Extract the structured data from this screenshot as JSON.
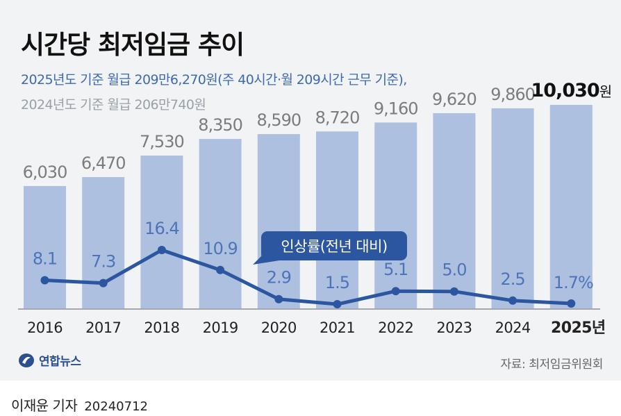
{
  "title": "시간당 최저임금 추이",
  "subtitle_current": "2025년도 기준 월급 209만6,270원(주 40시간·월 209시간 근무 기준),",
  "subtitle_previous": "2024년도 기준 월급 206만740원",
  "chart_data": {
    "type": "bar",
    "categories": [
      "2016",
      "2017",
      "2018",
      "2019",
      "2020",
      "2021",
      "2022",
      "2023",
      "2024",
      "2025년"
    ],
    "series": [
      {
        "name": "시간당 최저임금(원)",
        "type": "bar",
        "values": [
          6030,
          6470,
          7530,
          8350,
          8590,
          8720,
          9160,
          9620,
          9860,
          10030
        ],
        "labels": [
          "6,030",
          "6,470",
          "7,530",
          "8,350",
          "8,590",
          "8,720",
          "9,160",
          "9,620",
          "9,860",
          "10,030"
        ],
        "last_label_unit": "원"
      },
      {
        "name": "인상률(전년 대비)",
        "type": "line",
        "values": [
          8.1,
          7.3,
          16.4,
          10.9,
          2.9,
          1.5,
          5.1,
          5.0,
          2.5,
          1.7
        ],
        "labels": [
          "8.1",
          "7.3",
          "16.4",
          "10.9",
          "2.9",
          "1.5",
          "5.1",
          "5.0",
          "2.5",
          "1.7"
        ],
        "last_label_unit": "%"
      }
    ],
    "line_legend": "인상률(전년 대비)",
    "title": "시간당 최저임금 추이",
    "xlabel": "",
    "ylabel": ""
  },
  "logo_text": "연합뉴스",
  "source": "자료: 최저임금위원회",
  "byline": {
    "author": "이재윤 기자",
    "date": "20240712"
  },
  "colors": {
    "bar": "#aec0df",
    "line": "#2c56a0",
    "label": "#4d74b8",
    "bar_label": "#7c7c7c",
    "last_label": "#111111"
  }
}
